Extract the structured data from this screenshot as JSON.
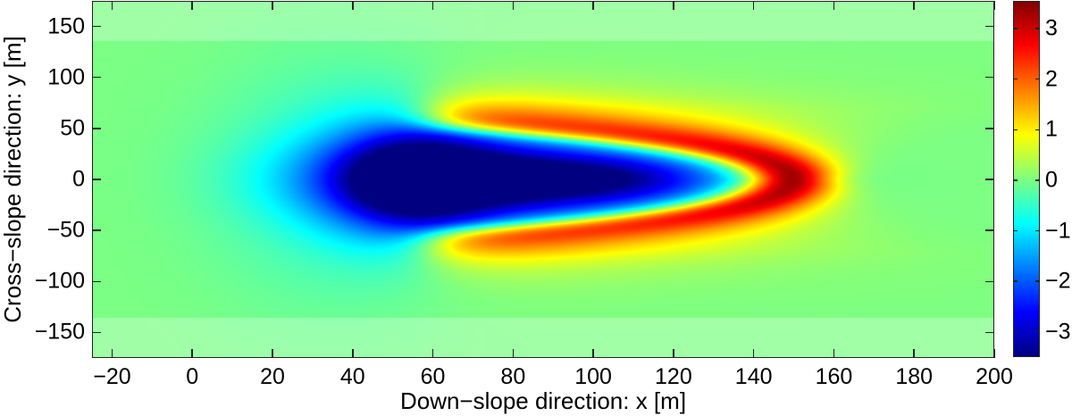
{
  "chart_data": {
    "type": "heatmap",
    "title": "",
    "xlabel": "Down−slope direction: x [m]",
    "ylabel": "Cross−slope direction: y [m]",
    "xlim": [
      -25,
      200
    ],
    "ylim": [
      -175,
      175
    ],
    "xticks": [
      -20,
      0,
      20,
      40,
      60,
      80,
      100,
      120,
      140,
      160,
      180,
      200
    ],
    "xtick_labels": [
      "−20",
      "0",
      "20",
      "40",
      "60",
      "80",
      "100",
      "120",
      "140",
      "160",
      "180",
      "200"
    ],
    "yticks": [
      150,
      100,
      50,
      0,
      -50,
      -100,
      -150
    ],
    "ytick_labels": [
      "150",
      "100",
      "50",
      "0",
      "−50",
      "−100",
      "−150"
    ],
    "grid": false,
    "colormap": "jet",
    "colorbar": {
      "clim": [
        -3.5,
        3.55
      ],
      "ticks": [
        3,
        2,
        1,
        0,
        -1,
        -2,
        -3
      ],
      "tick_labels": [
        "3",
        "2",
        "1",
        "0",
        "−1",
        "−2",
        "−3"
      ]
    },
    "boundary_bands": {
      "description": "lighter (semi-transparent white) bands near lateral domain edges",
      "y_above": 136,
      "y_below": -136,
      "overlay_color": "#ffffff",
      "overlay_alpha": 0.28
    },
    "features": {
      "trough": {
        "description": "negative (blue) elongated trough along centerline",
        "x_min_location": 75,
        "y_min_location": 0,
        "min_value": -3.5,
        "x_extent": [
          10,
          141
        ]
      },
      "ridge": {
        "description": "positive (red) parabolic/U-shaped band opening upstream",
        "apex_x": 150,
        "apex_y": 0,
        "max_value": 3.5,
        "arm_start_x": 63,
        "arm_y_at_start": [
          70,
          -73
        ]
      }
    },
    "field_model": {
      "trough_terms": [
        {
          "amp": -3.5,
          "x0": 75,
          "y0": 0,
          "sx": 28,
          "sy": 30
        },
        {
          "amp": -2.4,
          "x0": 55,
          "y0": 0,
          "sx": 14,
          "sy": 42
        },
        {
          "amp": -1.8,
          "x0": 110,
          "y0": 0,
          "sx": 22,
          "sy": 18
        },
        {
          "amp": -0.6,
          "x0": 35,
          "y0": 0,
          "sx": 20,
          "sy": 75
        }
      ],
      "ridge": {
        "amp": 3.6,
        "apex_x": 149,
        "curv_c": 0.0155,
        "arm_bend": 2e-06,
        "width": 7.5,
        "x_fade_start": 60,
        "x_fade_width": 18,
        "apex_boost": 0.35
      }
    }
  }
}
